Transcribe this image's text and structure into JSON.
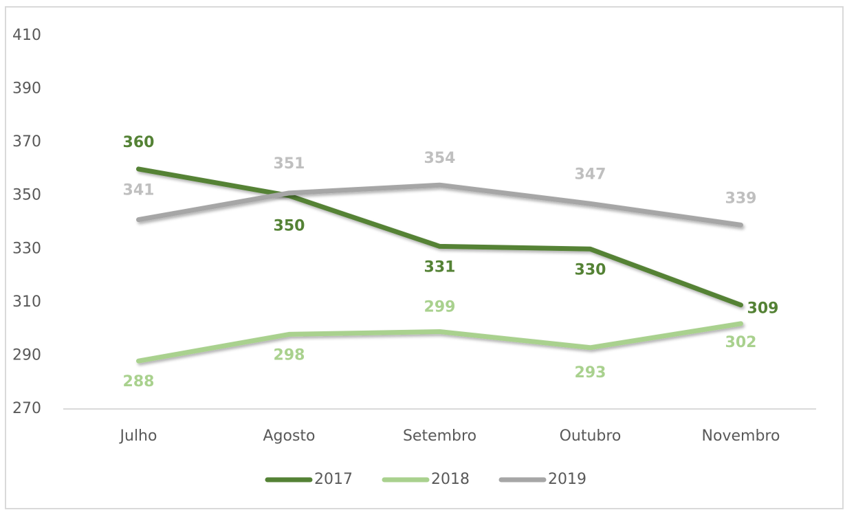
{
  "chart_data": {
    "type": "line",
    "categories": [
      "Julho",
      "Agosto",
      "Setembro",
      "Outubro",
      "Novembro"
    ],
    "series": [
      {
        "name": "2017",
        "color": "#548235",
        "label_color": "#548235",
        "values": [
          360,
          350,
          331,
          330,
          309
        ]
      },
      {
        "name": "2018",
        "color": "#a9d18e",
        "label_color": "#a9d18e",
        "values": [
          288,
          298,
          299,
          293,
          302
        ]
      },
      {
        "name": "2019",
        "color": "#a6a6a6",
        "label_color": "#bfbfbf",
        "values": [
          341,
          351,
          354,
          347,
          339
        ]
      }
    ],
    "ylim": [
      270,
      410
    ],
    "yticks": [
      270,
      290,
      310,
      330,
      350,
      370,
      390,
      410
    ],
    "legend": "bottom"
  }
}
